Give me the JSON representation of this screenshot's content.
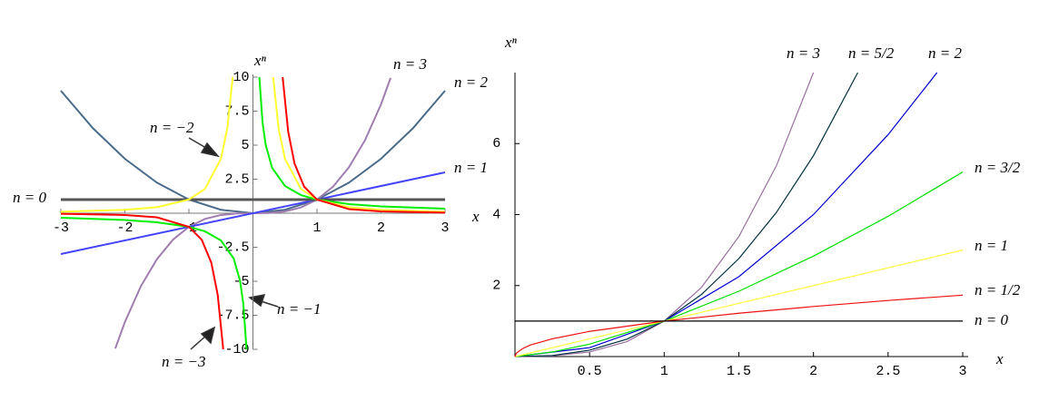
{
  "chart_data": [
    {
      "type": "line",
      "x_label": "x",
      "y_label": "xⁿ",
      "xlim": [
        -3,
        3
      ],
      "ylim": [
        -10,
        10
      ],
      "xticks": [
        -3,
        -2,
        -1,
        1,
        2,
        3
      ],
      "yticks": [
        10,
        7.5,
        5,
        2.5,
        -2.5,
        -5,
        -7.5,
        -10
      ],
      "series": [
        {
          "name": "n = 2",
          "color": "#4a6b8a",
          "x": [
            -3,
            -2.5,
            -2,
            -1.5,
            -1,
            -0.5,
            0,
            0.5,
            1,
            1.5,
            2,
            2.5,
            3
          ],
          "values": [
            9,
            6.25,
            4,
            2.25,
            1,
            0.25,
            0,
            0.25,
            1,
            2.25,
            4,
            6.25,
            9
          ]
        },
        {
          "name": "n = 3",
          "color": "#a07db0",
          "x": [
            -2.15,
            -2,
            -1.75,
            -1.5,
            -1.25,
            -1,
            -0.75,
            -0.5,
            -0.25,
            0,
            0.25,
            0.5,
            0.75,
            1,
            1.25,
            1.5,
            1.75,
            2,
            2.15
          ],
          "values": [
            -9.94,
            -8,
            -5.36,
            -3.38,
            -1.95,
            -1,
            -0.42,
            -0.13,
            -0.02,
            0,
            0.02,
            0.13,
            0.42,
            1,
            1.95,
            3.38,
            5.36,
            8,
            9.94
          ]
        },
        {
          "name": "n = 1",
          "color": "#4444ff",
          "x": [
            -3,
            3
          ],
          "values": [
            -3,
            3
          ]
        },
        {
          "name": "n = 0",
          "color": "#555555",
          "x": [
            -3,
            3
          ],
          "values": [
            1,
            1
          ]
        },
        {
          "name": "n = −1",
          "color": "#00ee00",
          "x": [
            -3,
            -2,
            -1.5,
            -1,
            -0.75,
            -0.5,
            -0.3,
            -0.2,
            -0.15,
            -0.1,
            null,
            0.1,
            0.15,
            0.2,
            0.3,
            0.5,
            0.75,
            1,
            1.5,
            2,
            3
          ],
          "values": [
            -0.33,
            -0.5,
            -0.67,
            -1,
            -1.33,
            -2,
            -3.33,
            -5,
            -6.67,
            -10,
            null,
            10,
            6.67,
            5,
            3.33,
            2,
            1.33,
            1,
            0.67,
            0.5,
            0.33
          ]
        },
        {
          "name": "n = −2",
          "color": "#ffff30",
          "x": [
            -3,
            -2,
            -1.5,
            -1,
            -0.75,
            -0.5,
            -0.4,
            -0.316,
            null,
            0.316,
            0.4,
            0.5,
            0.75,
            1,
            1.5,
            2,
            3
          ],
          "values": [
            0.11,
            0.25,
            0.44,
            1,
            1.78,
            4,
            6.25,
            10,
            null,
            10,
            6.25,
            4,
            1.78,
            1,
            0.44,
            0.25,
            0.11
          ]
        },
        {
          "name": "n = −3",
          "color": "#ff0000",
          "x": [
            -3,
            -2,
            -1.5,
            -1,
            -0.8,
            -0.65,
            -0.55,
            -0.464,
            null,
            0.464,
            0.55,
            0.65,
            0.8,
            1,
            1.5,
            2,
            3
          ],
          "values": [
            -0.04,
            -0.13,
            -0.3,
            -1,
            -1.95,
            -3.64,
            -6.01,
            -10,
            null,
            10,
            6.01,
            3.64,
            1.95,
            1,
            0.3,
            0.13,
            0.04
          ]
        }
      ]
    },
    {
      "type": "line",
      "x_label": "x",
      "y_label": "xⁿ",
      "xlim": [
        0,
        3
      ],
      "ylim": [
        0,
        8
      ],
      "xticks": [
        0.5,
        1,
        1.5,
        2,
        2.5,
        3
      ],
      "yticks": [
        2,
        4,
        6
      ],
      "series": [
        {
          "name": "n = 3",
          "color": "#9a70a0",
          "x": [
            0,
            0.25,
            0.5,
            0.75,
            1,
            1.25,
            1.5,
            1.75,
            2
          ],
          "values": [
            0,
            0.02,
            0.13,
            0.42,
            1,
            1.95,
            3.38,
            5.36,
            8
          ]
        },
        {
          "name": "n = 5/2",
          "color": "#003040",
          "x": [
            0,
            0.25,
            0.5,
            0.75,
            1,
            1.25,
            1.5,
            1.75,
            2,
            2.297
          ],
          "values": [
            0,
            0.03,
            0.18,
            0.49,
            1,
            1.75,
            2.76,
            4.05,
            5.66,
            8
          ]
        },
        {
          "name": "n = 2",
          "color": "#0000d0",
          "x": [
            0,
            0.5,
            1,
            1.5,
            2,
            2.5,
            2.828
          ],
          "values": [
            0,
            0.25,
            1,
            2.25,
            4,
            6.25,
            8
          ]
        },
        {
          "name": "n = 3/2",
          "color": "#00e000",
          "x": [
            0,
            0.25,
            0.5,
            1,
            1.5,
            2,
            2.5,
            3
          ],
          "values": [
            0,
            0.13,
            0.35,
            1,
            1.84,
            2.83,
            3.95,
            5.2
          ]
        },
        {
          "name": "n = 1",
          "color": "#ffff40",
          "x": [
            0,
            3
          ],
          "values": [
            0,
            3
          ]
        },
        {
          "name": "n = 1/2",
          "color": "#ee1111",
          "x": [
            0,
            0.01,
            0.05,
            0.1,
            0.25,
            0.5,
            1,
            1.5,
            2,
            2.5,
            3
          ],
          "values": [
            0,
            0.1,
            0.22,
            0.32,
            0.5,
            0.71,
            1,
            1.22,
            1.41,
            1.58,
            1.73
          ]
        },
        {
          "name": "n = 0",
          "color": "#000000",
          "x": [
            0,
            3
          ],
          "values": [
            1,
            1
          ]
        }
      ]
    }
  ]
}
